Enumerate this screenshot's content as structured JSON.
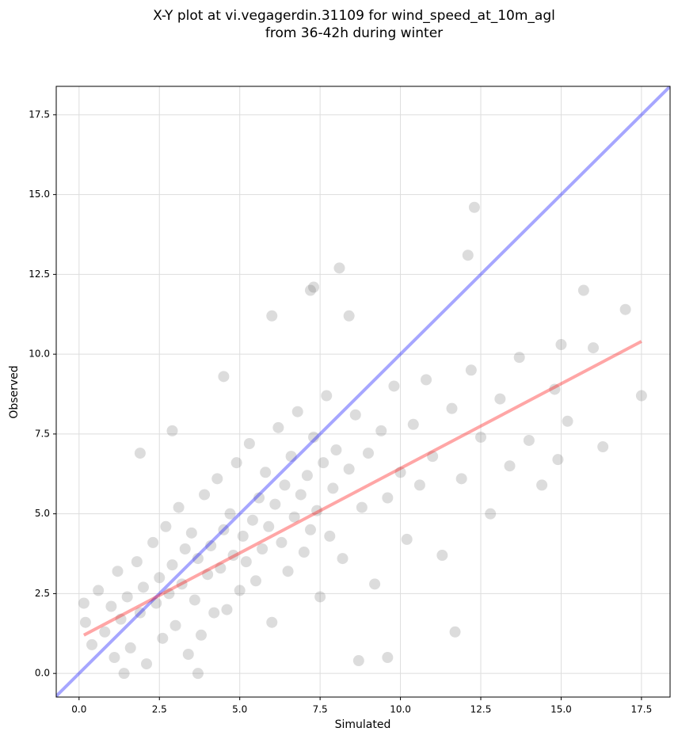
{
  "chart_data": {
    "type": "scatter",
    "title_lines": [
      "X-Y plot at vi.vegagerdin.31109 for wind_speed_at_10m_agl",
      "from 36-42h during winter"
    ],
    "x_label": "Simulated",
    "y_label": "Observed",
    "xlim": [
      -0.71,
      18.39
    ],
    "ylim": [
      -0.74,
      18.39
    ],
    "xticks": [
      {
        "value": 0,
        "label": "0.0"
      },
      {
        "value": 2.5,
        "label": "2.5"
      },
      {
        "value": 5,
        "label": "5.0"
      },
      {
        "value": 7.5,
        "label": "7.5"
      },
      {
        "value": 10,
        "label": "10.0"
      },
      {
        "value": 12.5,
        "label": "12.5"
      },
      {
        "value": 15,
        "label": "15.0"
      },
      {
        "value": 17.5,
        "label": "17.5"
      }
    ],
    "yticks": [
      {
        "value": 0,
        "label": "0.0"
      },
      {
        "value": 2.5,
        "label": "2.5"
      },
      {
        "value": 5,
        "label": "5.0"
      },
      {
        "value": 7.5,
        "label": "7.5"
      },
      {
        "value": 10,
        "label": "10.0"
      },
      {
        "value": 12.5,
        "label": "12.5"
      },
      {
        "value": 15,
        "label": "15.0"
      },
      {
        "value": 17.5,
        "label": "17.5"
      }
    ],
    "grid": true,
    "series": [
      {
        "color": "#606060",
        "opacity": 0.22,
        "x": [
          0.2,
          0.4,
          0.6,
          0.8,
          1.0,
          1.1,
          1.2,
          1.3,
          1.5,
          1.6,
          1.8,
          1.9,
          2.0,
          2.1,
          2.3,
          2.4,
          2.5,
          2.6,
          2.7,
          2.8,
          2.9,
          3.0,
          3.1,
          3.2,
          3.3,
          3.4,
          3.5,
          3.6,
          3.7,
          3.8,
          3.9,
          4.0,
          4.1,
          4.2,
          4.3,
          4.4,
          4.5,
          4.6,
          4.7,
          4.8,
          4.9,
          5.0,
          5.1,
          5.2,
          5.3,
          5.4,
          5.5,
          5.6,
          5.7,
          5.8,
          5.9,
          6.0,
          6.1,
          6.2,
          6.3,
          6.4,
          6.5,
          6.6,
          6.7,
          6.8,
          6.9,
          7.0,
          7.1,
          7.2,
          7.3,
          7.4,
          7.5,
          7.6,
          7.7,
          7.8,
          7.9,
          8.0,
          8.2,
          8.4,
          8.6,
          8.8,
          9.0,
          9.2,
          9.4,
          9.6,
          9.8,
          10.0,
          10.2,
          10.4,
          10.6,
          10.8,
          11.0,
          11.3,
          11.6,
          11.9,
          12.2,
          12.5,
          12.8,
          13.1,
          13.4,
          13.7,
          14.0,
          14.4,
          14.8,
          15.2,
          12.3,
          12.1,
          8.1,
          7.2,
          7.3,
          6.0,
          8.4,
          17.5,
          17.0,
          15.7,
          16.3,
          0.15,
          1.4,
          3.7,
          8.7,
          9.6,
          11.7,
          2.9,
          1.9,
          4.5,
          14.9,
          16.0,
          15.0
        ],
        "y": [
          1.6,
          0.9,
          2.6,
          1.3,
          2.1,
          0.5,
          3.2,
          1.7,
          2.4,
          0.8,
          3.5,
          1.9,
          2.7,
          0.3,
          4.1,
          2.2,
          3.0,
          1.1,
          4.6,
          2.5,
          3.4,
          1.5,
          5.2,
          2.8,
          3.9,
          0.6,
          4.4,
          2.3,
          3.6,
          1.2,
          5.6,
          3.1,
          4.0,
          1.9,
          6.1,
          3.3,
          4.5,
          2.0,
          5.0,
          3.7,
          6.6,
          2.6,
          4.3,
          3.5,
          7.2,
          4.8,
          2.9,
          5.5,
          3.9,
          6.3,
          4.6,
          1.6,
          5.3,
          7.7,
          4.1,
          5.9,
          3.2,
          6.8,
          4.9,
          8.2,
          5.6,
          3.8,
          6.2,
          4.5,
          7.4,
          5.1,
          2.4,
          6.6,
          8.7,
          4.3,
          5.8,
          7.0,
          3.6,
          6.4,
          8.1,
          5.2,
          6.9,
          2.8,
          7.6,
          5.5,
          9.0,
          6.3,
          4.2,
          7.8,
          5.9,
          9.2,
          6.8,
          3.7,
          8.3,
          6.1,
          9.5,
          7.4,
          5.0,
          8.6,
          6.5,
          9.9,
          7.3,
          5.9,
          8.9,
          7.9,
          14.6,
          13.1,
          12.7,
          12.0,
          12.1,
          11.2,
          11.2,
          8.7,
          11.4,
          12.0,
          7.1,
          2.2,
          0.0,
          0.0,
          0.4,
          0.5,
          1.3,
          7.6,
          6.9,
          9.3,
          6.7,
          10.2,
          10.3
        ]
      }
    ],
    "lines": [
      {
        "color": "#0000ff",
        "opacity": 0.35,
        "x": [
          -0.71,
          18.39
        ],
        "y": [
          -0.71,
          18.39
        ]
      },
      {
        "color": "#ff0000",
        "opacity": 0.35,
        "x": [
          0.15,
          17.5
        ],
        "y": [
          1.2,
          10.4
        ]
      }
    ]
  }
}
